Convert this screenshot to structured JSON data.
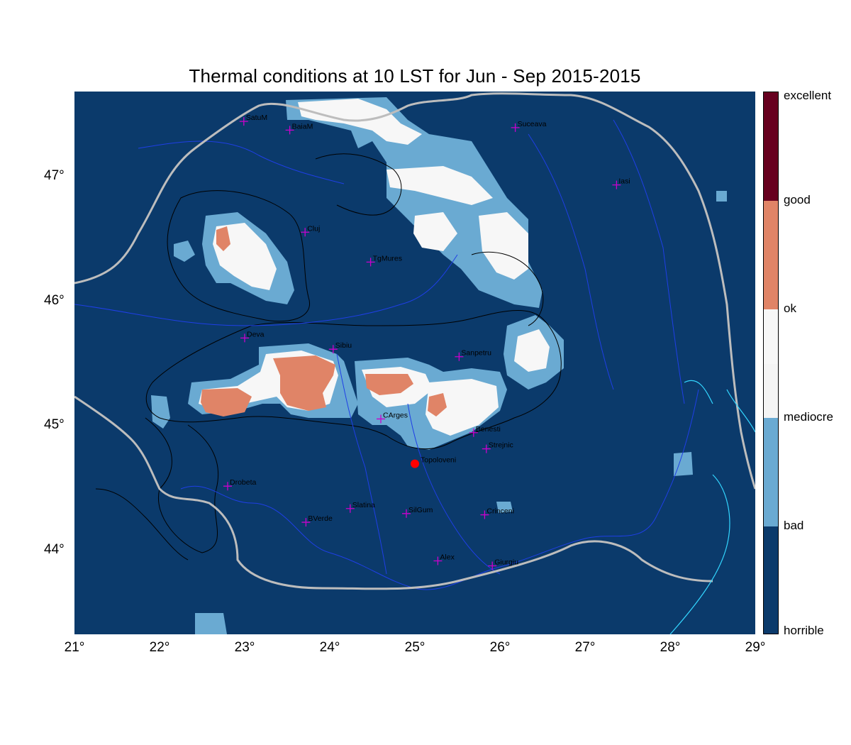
{
  "title": "Thermal conditions at 10 LST for Jun - Sep  2015-2015",
  "axes": {
    "x_ticks": [
      "21°",
      "22°",
      "23°",
      "24°",
      "25°",
      "26°",
      "27°",
      "28°",
      "29°"
    ],
    "y_ticks": [
      "47°",
      "46°",
      "45°",
      "44°"
    ],
    "lon_range": [
      21,
      29
    ],
    "lat_range": [
      43.32,
      47.68
    ]
  },
  "legend": {
    "labels": [
      "excellent",
      "good",
      "ok",
      "mediocre",
      "bad",
      "horrible"
    ],
    "colors": {
      "excellent": "#67001f",
      "good": "#e08467",
      "ok": "#f7f7f7",
      "mediocre": "#f4f4f4",
      "bad": "#6aaad2",
      "horrible": "#0b3a6b"
    }
  },
  "colors": {
    "background": "#0b3a6b",
    "border": "#bdbdbd",
    "rivers": "#1f3fe6",
    "coast": "#33d6ff",
    "city_marker": "#cc00cc",
    "highlight_point": "#ff0000"
  },
  "cities": [
    {
      "name": "SatuM",
      "lon": 22.99,
      "lat": 47.44
    },
    {
      "name": "BaiaM",
      "lon": 23.53,
      "lat": 47.37
    },
    {
      "name": "Suceava",
      "lon": 26.18,
      "lat": 47.39
    },
    {
      "name": "Iasi",
      "lon": 27.37,
      "lat": 46.93
    },
    {
      "name": "Cluj",
      "lon": 23.71,
      "lat": 46.55
    },
    {
      "name": "TgMures",
      "lon": 24.48,
      "lat": 46.31
    },
    {
      "name": "Deva",
      "lon": 23.0,
      "lat": 45.7
    },
    {
      "name": "Sibiu",
      "lon": 24.04,
      "lat": 45.61
    },
    {
      "name": "Sanpetru",
      "lon": 25.52,
      "lat": 45.55
    },
    {
      "name": "CArges",
      "lon": 24.6,
      "lat": 45.05
    },
    {
      "name": "Benesti",
      "lon": 25.69,
      "lat": 44.94
    },
    {
      "name": "Strejnic",
      "lon": 25.84,
      "lat": 44.81
    },
    {
      "name": "Drobeta",
      "lon": 22.8,
      "lat": 44.51
    },
    {
      "name": "Slatina",
      "lon": 24.24,
      "lat": 44.33
    },
    {
      "name": "SilGum",
      "lon": 24.9,
      "lat": 44.29
    },
    {
      "name": "Crinceni",
      "lon": 25.82,
      "lat": 44.28
    },
    {
      "name": "BVerde",
      "lon": 23.72,
      "lat": 44.22
    },
    {
      "name": "Alex",
      "lon": 25.27,
      "lat": 43.91
    },
    {
      "name": "Giurgiu",
      "lon": 25.91,
      "lat": 43.87
    }
  ],
  "highlight": {
    "name": "Topoloveni",
    "lon": 25.0,
    "lat": 44.69
  }
}
